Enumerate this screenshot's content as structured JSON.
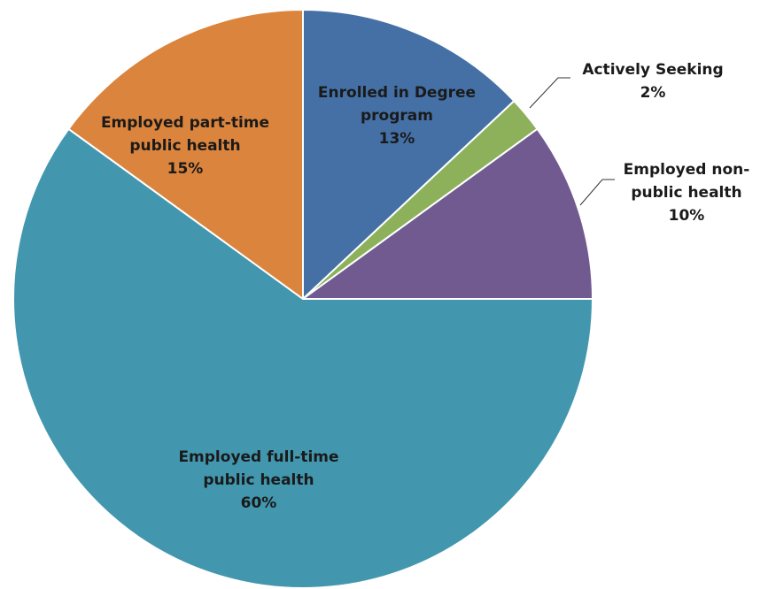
{
  "chart_data": {
    "type": "pie",
    "start_angle_deg": 0,
    "direction": "clockwise",
    "slices": [
      {
        "label_lines": [
          "Enrolled in Degree",
          "program"
        ],
        "percent_text": "13%",
        "value": 13,
        "color": "#4470A6"
      },
      {
        "label_lines": [
          "Actively Seeking"
        ],
        "percent_text": "2%",
        "value": 2,
        "color": "#8CB15A"
      },
      {
        "label_lines": [
          "Employed non-",
          "public health"
        ],
        "percent_text": "10%",
        "value": 10,
        "color": "#715A90"
      },
      {
        "label_lines": [
          "Employed full-time",
          "public health"
        ],
        "percent_text": "60%",
        "value": 60,
        "color": "#4297AF"
      },
      {
        "label_lines": [
          "Employed part-time",
          "public health"
        ],
        "percent_text": "15%",
        "value": 15,
        "color": "#DB843D"
      }
    ]
  }
}
